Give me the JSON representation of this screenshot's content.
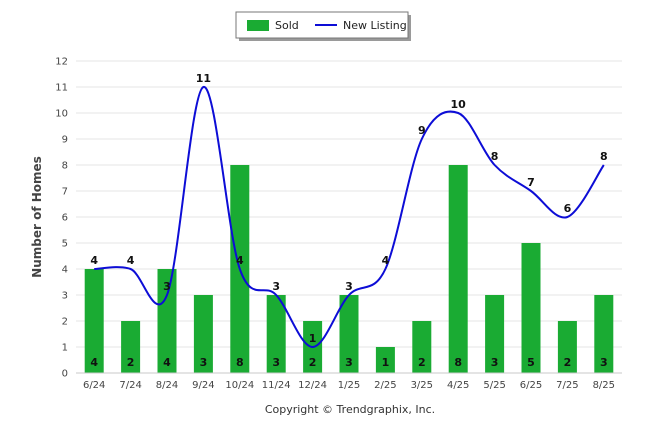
{
  "chart_data": {
    "type": "bar",
    "categories": [
      "6/24",
      "7/24",
      "8/24",
      "9/24",
      "10/24",
      "11/24",
      "12/24",
      "1/25",
      "2/25",
      "3/25",
      "4/25",
      "5/25",
      "6/25",
      "7/25",
      "8/25"
    ],
    "series": [
      {
        "name": "Sold",
        "type": "bar",
        "color": "#1aab33",
        "values": [
          4,
          2,
          4,
          3,
          8,
          3,
          2,
          3,
          1,
          2,
          8,
          3,
          5,
          2,
          3
        ]
      },
      {
        "name": "New Listing",
        "type": "line",
        "color": "#0d0dd6",
        "values": [
          4,
          4,
          3,
          11,
          4,
          3,
          1,
          3,
          4,
          9,
          10,
          8,
          7,
          6,
          8
        ]
      }
    ],
    "ylabel": "Number of Homes",
    "ylim": [
      0,
      12
    ],
    "yticks": [
      0,
      1,
      2,
      3,
      4,
      5,
      6,
      7,
      8,
      9,
      10,
      11,
      12
    ],
    "grid": true,
    "legend": "top-center"
  },
  "footer": {
    "copyright": "Copyright © Trendgraphix, Inc."
  }
}
